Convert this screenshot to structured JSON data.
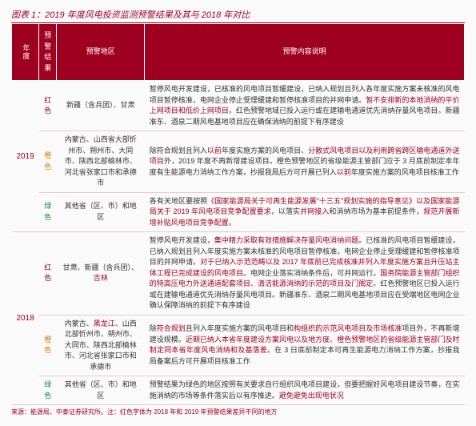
{
  "title": "图表 1：2019 年度风电投资监测预警结果及其与 2018 年对比",
  "columns": {
    "year": "年度",
    "result": "预警结果",
    "region": "预警地区",
    "explain": "预警内容说明"
  },
  "rows": [
    {
      "year": "2019",
      "tag": "红色",
      "tag_color": "#a00020",
      "region_html": "新疆（含兵团）、甘肃",
      "explain_html": "暂停风电开发建设，已核准的风电项目暂缓建设，已纳入规划且列入各年度实施方案未核准的风电项目暂停核准，电网企业停止受理缓建和暂停核准项目的并网申请。<span class='red-txt'>暂不安排新的本地消纳的平价上网项目和低价上网项目。</span>红色预警地域已投入运行或在建输电通道优先消纳存量风电项目。新疆准东、酒泉二期风电基地项目应在确保消纳的前提下有序建设"
    },
    {
      "year": "",
      "tag": "橙色",
      "tag_color": "#d97a00",
      "region_html": "内蒙古、山西省大部忻州市、朔州市、大同市、陕西北部榆林市、河北省张家口市和承德市",
      "explain_html": "除符合规划且列入<span class='red-txt'>以前</span>年度实施方案的风电项目、<span class='red-txt'>分散式风电项目以及利用跨省跨区输电通道外送项目</span>外，2019 年度不再新增建设项目。橙色预警地区的省级能源主管部门应于 3 月底前制定本年度有生能源电力消纳工作方案，抄报我局后方可开展已列入<span class='red-txt'>以前</span>年度实施方案的风电项目核准工作"
    },
    {
      "year": "",
      "tag": "绿色",
      "tag_color": "#1a8a3a",
      "region_html": "其他省（区、市）和地区",
      "explain_html": "各有关地区要按照<span class='red-txt'>《国家能源局关于可再生能源发展\"十三五\"规划实施的指导意见》以及国家能源局关于 2019 年风电项目竞争配置要求</span>，以落实<span class='red-txt'>并网接入</span>和消纳市场为基本前提条件，<span class='red-txt'>规范开展新增补贴风电项目竞争配置</span>。"
    },
    {
      "year": "2018",
      "tag": "红色",
      "tag_color": "#a00020",
      "region_html": "甘肃、新疆（含兵团）、<span class='red-txt'>吉林</span>",
      "explain_html": "暂停风电开发建设，<span class='red-txt'>集中精力采取有效措施解决存量风电消纳问题</span>。已核准的风电项目暂缓建设，已纳入规划且列入年度实施方案未核准的风电项目暂停核准，电网企业停止受理缓建和暂停核准项目的并网申请。<span class='red-txt'>对于已纳入示范范畴以及 2017 年底前已完成核准并列入年度实施方案且升压站主体工程已完成建设的风电项目</span>。电网企业落实消纳条件后，可并网运行。<span class='red-txt'>国务院能源主管部门组织的特高压电力外送通道配套项目、清洁能源消纳的示范的项目及门阁定</span>。红色预警地区已投入运行或在建输电通道优先消纳存量风电项目。新疆准东、酒泉二期风电基地项目应在受端地区电网企业确认保障消纳的前提下有序建设"
    },
    {
      "year": "",
      "tag": "橙色",
      "tag_color": "#d97a00",
      "region_html": "内蒙古、<span class='red-txt'>黑龙江</span>、山西北部忻州市、朔州市、大同市、陕西北部榆林市、河北省张家口市和承德市",
      "explain_html": "除<span class='red-txt'>符合规划</span>且列入年度实施方案的风电项目和<span class='red-txt'>构组织的示范风电项目及市场核准</span>项目外，不再新增建设规模。<span class='red-txt'>近期已纳入本省年度建设方案风电以及地方度、橙色预警地区的省级能源主管部门及时制定同本省年度风电消纳和及基落差</span>。在 3 日底前制定本可再生能源电力消纳工作方案，抄报我局备案后方可开展项目核准工作"
    },
    {
      "year": "",
      "tag": "绿色",
      "tag_color": "#1a8a3a",
      "region_html": "其他省（区、市）和地区",
      "explain_html": "预警结果为绿色的地区按照有关要求自行组织风电项目建设，但要把握好风电项目建设节奏，在实施消纳的市场等条件落实后以有序推进。<span class='red-txt'>避免避免出现电状况</span>"
    }
  ],
  "footnote": "来源：能源局、中泰证券研究所。注：红色字体为 2018 年和 2019 年预警结果差异不同的地方"
}
